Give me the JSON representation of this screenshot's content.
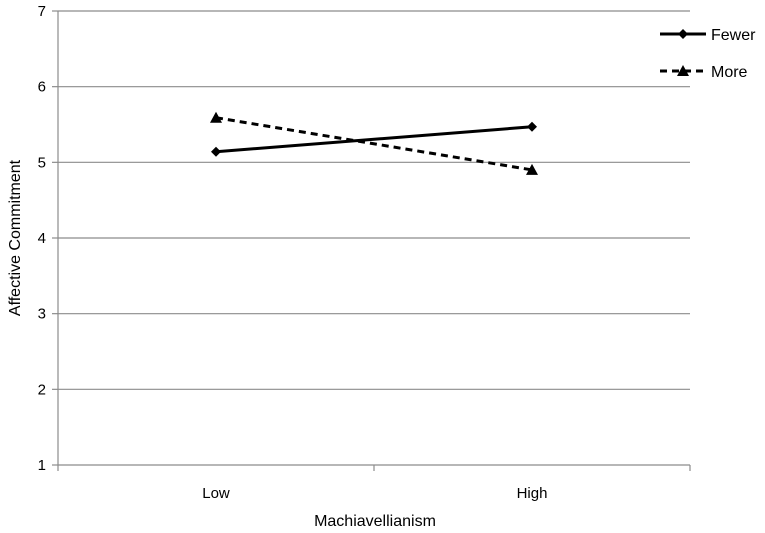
{
  "chart_data": {
    "type": "line",
    "title": "",
    "xlabel": "Machiavellianism",
    "ylabel": "Affective Commitment",
    "categories": [
      "Low",
      "High"
    ],
    "ylim": [
      1,
      7
    ],
    "yticks": [
      "1",
      "2",
      "3",
      "4",
      "5",
      "6",
      "7"
    ],
    "grid": true,
    "legend_position": "top-right",
    "series": [
      {
        "name": "Fewer",
        "values": [
          5.14,
          5.47
        ],
        "line_style": "solid",
        "marker": "diamond",
        "color": "#000000"
      },
      {
        "name": "More",
        "values": [
          5.59,
          4.9
        ],
        "line_style": "dashed",
        "marker": "triangle",
        "color": "#000000"
      }
    ]
  }
}
